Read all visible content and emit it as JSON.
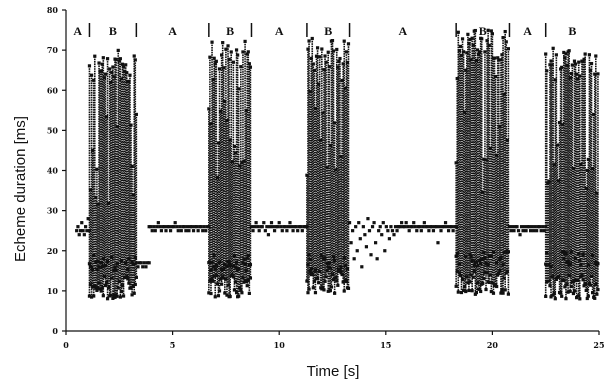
{
  "chart_data": {
    "type": "scatter",
    "title": "",
    "xlabel": "Time [s]",
    "ylabel": "Echeme duration [ms]",
    "xlim": [
      0,
      25
    ],
    "ylim": [
      0,
      80
    ],
    "xticks": [
      0,
      5,
      10,
      15,
      20,
      25
    ],
    "yticks": [
      0,
      10,
      20,
      30,
      40,
      50,
      60,
      70,
      80
    ],
    "grid": false,
    "legend": "none",
    "colors": {
      "points": "#111111",
      "axis": "#111111",
      "background": "#ffffff"
    },
    "phases": [
      {
        "label": "A",
        "start": 0.0,
        "end": 1.1
      },
      {
        "label": "B",
        "start": 1.1,
        "end": 3.3
      },
      {
        "label": "A",
        "start": 3.3,
        "end": 6.7
      },
      {
        "label": "B",
        "start": 6.7,
        "end": 8.7
      },
      {
        "label": "A",
        "start": 8.7,
        "end": 11.3
      },
      {
        "label": "B",
        "start": 11.3,
        "end": 13.3
      },
      {
        "label": "A",
        "start": 13.3,
        "end": 18.3
      },
      {
        "label": "B",
        "start": 18.3,
        "end": 20.8
      },
      {
        "label": "A",
        "start": 20.8,
        "end": 22.5
      },
      {
        "label": "B",
        "start": 22.5,
        "end": 25.0
      }
    ],
    "series": [
      {
        "segments": [
          {
            "kind": "A",
            "x_start": 0.5,
            "x_end": 1.1,
            "step": 0.06,
            "y": [
              25,
              26,
              24,
              25,
              27,
              25,
              24,
              26,
              25,
              28,
              25
            ]
          },
          {
            "kind": "B",
            "x_start": 1.1,
            "x_end": 3.3,
            "step": 0.05,
            "high": 70,
            "low": 8,
            "mid": 17
          },
          {
            "kind": "A",
            "x_start": 3.3,
            "x_end": 3.9,
            "step": 0.07,
            "y": [
              17,
              16,
              17,
              17,
              16,
              17,
              16,
              17,
              17
            ]
          },
          {
            "kind": "A",
            "x_start": 3.9,
            "x_end": 6.7,
            "step": 0.07,
            "y": [
              26,
              26,
              25,
              26,
              25,
              26,
              27,
              26,
              25,
              26,
              26,
              25,
              26,
              26,
              25,
              26,
              26,
              27,
              26,
              25,
              26,
              25,
              26,
              26,
              25,
              26,
              25,
              26,
              26,
              25,
              26,
              26,
              25,
              26,
              26,
              25,
              26,
              25,
              26,
              26
            ]
          },
          {
            "kind": "B",
            "x_start": 6.7,
            "x_end": 8.7,
            "step": 0.05,
            "high": 73,
            "low": 8,
            "mid": 17
          },
          {
            "kind": "A",
            "x_start": 8.7,
            "x_end": 11.3,
            "step": 0.07,
            "y": [
              26,
              25,
              26,
              27,
              26,
              25,
              26,
              26,
              27,
              25,
              26,
              24,
              26,
              27,
              26,
              25,
              26,
              26,
              27,
              26,
              25,
              26,
              26,
              25,
              26,
              27,
              26,
              25,
              26,
              26,
              25,
              26,
              26,
              25,
              26,
              26,
              26
            ]
          },
          {
            "kind": "B",
            "x_start": 11.3,
            "x_end": 13.3,
            "step": 0.05,
            "high": 73,
            "low": 9,
            "mid": 17
          },
          {
            "kind": "A",
            "x_start": 13.3,
            "x_end": 15.6,
            "step": 0.07,
            "y": [
              27,
              22,
              25,
              18,
              26,
              20,
              27,
              23,
              16,
              26,
              24,
              21,
              28,
              25,
              19,
              26,
              27,
              22,
              18,
              25,
              26,
              24,
              27,
              20,
              26,
              25,
              23,
              26,
              25,
              24,
              26,
              25,
              26
            ]
          },
          {
            "kind": "A",
            "x_start": 15.6,
            "x_end": 18.3,
            "step": 0.07,
            "y": [
              26,
              26,
              27,
              26,
              26,
              27,
              26,
              25,
              26,
              26,
              27,
              26,
              25,
              26,
              26,
              25,
              26,
              27,
              26,
              26,
              25,
              26,
              26,
              25,
              26,
              26,
              22,
              26,
              25,
              26,
              26,
              27,
              26,
              25,
              26,
              26,
              25,
              26,
              26
            ]
          },
          {
            "kind": "B",
            "x_start": 18.3,
            "x_end": 20.8,
            "step": 0.05,
            "high": 75,
            "low": 9,
            "mid": 18
          },
          {
            "kind": "A",
            "x_start": 20.8,
            "x_end": 22.5,
            "step": 0.07,
            "y": [
              26,
              25,
              26,
              25,
              26,
              26,
              25,
              24,
              26,
              25,
              26,
              25,
              26,
              26,
              25,
              26,
              25,
              26,
              25,
              26,
              26,
              25,
              26,
              25,
              26
            ]
          },
          {
            "kind": "B",
            "x_start": 22.5,
            "x_end": 25.0,
            "step": 0.05,
            "high": 71,
            "low": 8,
            "mid": 18
          }
        ]
      }
    ]
  }
}
